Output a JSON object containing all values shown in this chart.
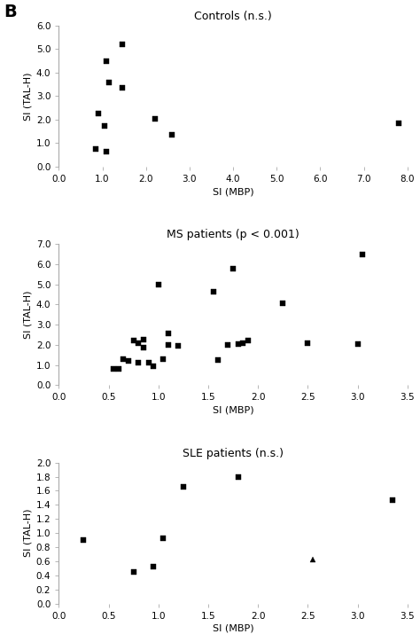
{
  "panel_label": "B",
  "plots": [
    {
      "title": "Controls (n.s.)",
      "xlabel": "SI (MBP)",
      "ylabel": "SI (TAL-H)",
      "xlim": [
        0.0,
        8.0
      ],
      "ylim": [
        0.0,
        6.0
      ],
      "xticks": [
        0.0,
        1.0,
        2.0,
        3.0,
        4.0,
        5.0,
        6.0,
        7.0,
        8.0
      ],
      "yticks": [
        0.0,
        1.0,
        2.0,
        3.0,
        4.0,
        5.0,
        6.0
      ],
      "x": [
        0.85,
        0.9,
        1.05,
        1.1,
        1.1,
        1.15,
        1.45,
        1.45,
        2.2,
        2.6,
        7.8
      ],
      "y": [
        0.75,
        2.25,
        1.75,
        0.65,
        4.5,
        3.6,
        5.2,
        3.35,
        2.05,
        1.35,
        1.85
      ],
      "markers": [
        "s",
        "s",
        "s",
        "s",
        "s",
        "s",
        "s",
        "s",
        "s",
        "s",
        "s"
      ]
    },
    {
      "title": "MS patients (p < 0.001)",
      "xlabel": "SI (MBP)",
      "ylabel": "SI (TAL-H)",
      "xlim": [
        0.0,
        3.5
      ],
      "ylim": [
        0.0,
        7.0
      ],
      "xticks": [
        0.0,
        0.5,
        1.0,
        1.5,
        2.0,
        2.5,
        3.0,
        3.5
      ],
      "yticks": [
        0.0,
        1.0,
        2.0,
        3.0,
        4.0,
        5.0,
        6.0,
        7.0
      ],
      "x": [
        0.55,
        0.6,
        0.65,
        0.7,
        0.75,
        0.8,
        0.8,
        0.85,
        0.85,
        0.9,
        0.95,
        1.0,
        1.05,
        1.1,
        1.1,
        1.2,
        1.55,
        1.6,
        1.7,
        1.75,
        1.8,
        1.85,
        1.9,
        2.25,
        2.5,
        3.0,
        3.05
      ],
      "y": [
        0.8,
        0.8,
        1.3,
        1.2,
        2.2,
        2.1,
        1.1,
        1.85,
        2.25,
        1.1,
        0.95,
        5.0,
        1.3,
        2.0,
        2.55,
        1.95,
        4.65,
        1.25,
        2.0,
        5.8,
        2.05,
        2.1,
        2.2,
        4.05,
        2.1,
        2.05,
        6.5
      ],
      "markers": [
        "s",
        "s",
        "s",
        "s",
        "s",
        "s",
        "s",
        "s",
        "s",
        "s",
        "s",
        "s",
        "s",
        "s",
        "s",
        "s",
        "s",
        "s",
        "s",
        "s",
        "s",
        "s",
        "s",
        "s",
        "s",
        "s",
        "s"
      ]
    },
    {
      "title": "SLE patients (n.s.)",
      "xlabel": "SI (MBP)",
      "ylabel": "SI (TAL-H)",
      "xlim": [
        0.0,
        3.5
      ],
      "ylim": [
        0.0,
        2.0
      ],
      "xticks": [
        0.0,
        0.5,
        1.0,
        1.5,
        2.0,
        2.5,
        3.0,
        3.5
      ],
      "yticks": [
        0.0,
        0.2,
        0.4,
        0.6,
        0.8,
        1.0,
        1.2,
        1.4,
        1.6,
        1.8,
        2.0
      ],
      "x": [
        0.25,
        0.75,
        0.95,
        1.05,
        1.25,
        1.8,
        2.55,
        3.35
      ],
      "y": [
        0.9,
        0.45,
        0.52,
        0.92,
        1.65,
        1.8,
        0.62,
        1.47
      ],
      "markers": [
        "s",
        "s",
        "s",
        "s",
        "s",
        "s",
        "^",
        "s"
      ]
    }
  ],
  "marker_color": "black",
  "marker_size": 4,
  "title_fontsize": 9,
  "label_fontsize": 8,
  "tick_fontsize": 7.5,
  "spine_color": "#aaaaaa",
  "axhline_color": "#aaaaaa",
  "axhline_style": "--",
  "axhline_lw": 0.5
}
